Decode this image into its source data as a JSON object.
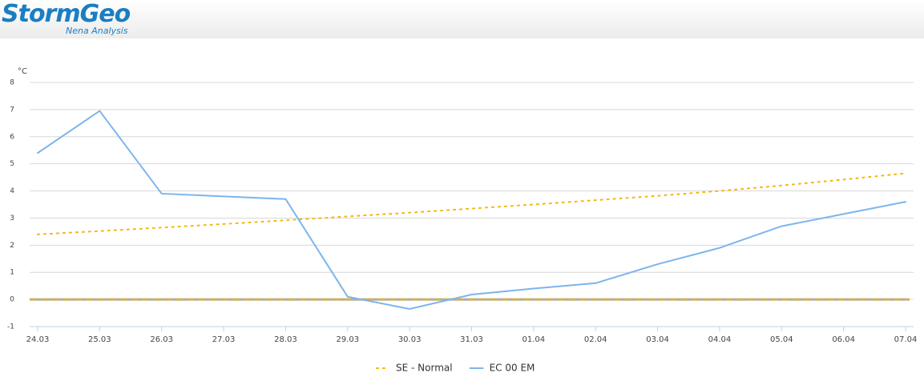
{
  "header": {
    "logo": "StormGeo",
    "subtitle": "Nena Analysis"
  },
  "chart_data": {
    "type": "line",
    "y_label": "°C",
    "categories": [
      "24.03",
      "25.03",
      "26.03",
      "27.03",
      "28.03",
      "29.03",
      "30.03",
      "31.03",
      "01.04",
      "02.04",
      "03.04",
      "04.04",
      "05.04",
      "06.04",
      "07.04"
    ],
    "series": [
      {
        "name": "SE - Normal",
        "color": "#f5b400",
        "dash": "dotted",
        "values": [
          2.4,
          2.52,
          2.65,
          2.78,
          2.92,
          3.06,
          3.2,
          3.35,
          3.5,
          3.66,
          3.82,
          4.0,
          4.2,
          4.42,
          4.65
        ]
      },
      {
        "name": "EC 00 EM",
        "color": "#7cb5ec",
        "dash": "solid",
        "values": [
          5.4,
          6.95,
          3.9,
          3.8,
          3.7,
          0.1,
          -0.35,
          0.18,
          0.4,
          0.6,
          1.3,
          1.9,
          2.7,
          3.15,
          3.6
        ]
      }
    ],
    "plot_lines": [
      {
        "value": 0,
        "color": "#f0b000"
      }
    ],
    "ylim": [
      -1,
      8
    ],
    "yticks": [
      -1,
      0,
      1,
      2,
      3,
      4,
      5,
      6,
      7,
      8
    ],
    "grid": true
  }
}
